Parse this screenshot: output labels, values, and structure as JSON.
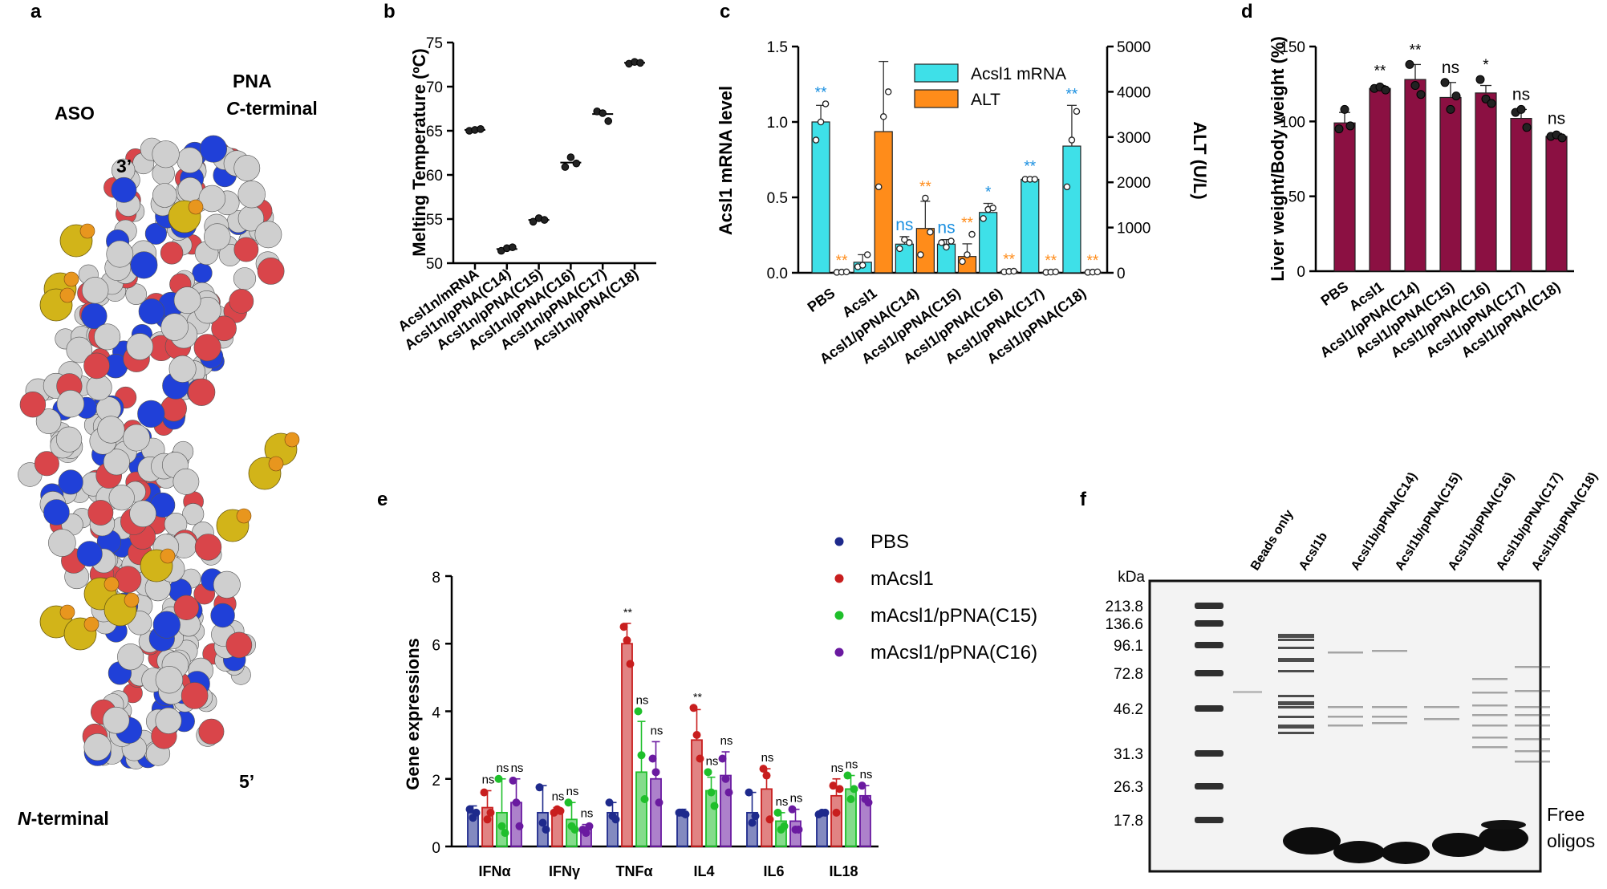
{
  "panel_labels": {
    "a": "a",
    "b": "b",
    "c": "c",
    "d": "d",
    "e": "e",
    "f": "f"
  },
  "panel_a": {
    "aso": "ASO",
    "pna": "PNA",
    "c_terminal": "C-terminal",
    "c_italic": "C",
    "c_rest": "-terminal",
    "n_italic": "N",
    "n_rest": "-terminal",
    "three_prime": "3’",
    "five_prime": "5’",
    "atom_colors": {
      "carbon": "#cfcfcf",
      "oxygen": "#d9454a",
      "nitrogen": "#2040d8",
      "phosphorus": "#e8961e",
      "sulfur": "#d2b419"
    }
  },
  "colors": {
    "cyan": "#3ee0e8",
    "orange": "#ff8c1a",
    "maroon": "#8b1042",
    "blue_sig": "#1a8fe0",
    "orange_sig": "#ff8c1a",
    "pbs": "#1e2a8c",
    "macsl1": "#c81e1e",
    "c15": "#1fbf2b",
    "c16": "#6a1aa0"
  },
  "chart_data": [
    {
      "id": "b",
      "type": "scatter",
      "ylabel": "Melting Temperature (ºC)",
      "ylim": [
        50,
        75
      ],
      "yticks": [
        50,
        55,
        60,
        65,
        70,
        75
      ],
      "categories": [
        "Acsl1n/mRNA",
        "Acsl1n/pPNA(C14)",
        "Acsl1n/pPNA(C15)",
        "Acsl1n/pPNA(C16)",
        "Acsl1n/pPNA(C17)",
        "Acsl1n/pPNA(C18)"
      ],
      "means": [
        65.1,
        51.6,
        54.9,
        61.4,
        66.9,
        72.7
      ],
      "points": [
        [
          65.0,
          65.1,
          65.2
        ],
        [
          51.4,
          51.7,
          51.8
        ],
        [
          54.7,
          55.1,
          54.9
        ],
        [
          60.9,
          62.0,
          61.3
        ],
        [
          67.2,
          67.0,
          66.1
        ],
        [
          72.6,
          72.8,
          72.7
        ]
      ]
    },
    {
      "id": "c",
      "type": "bar",
      "ylabel": "Acsl1 mRNA level",
      "y2label": "ALT (U/L)",
      "ylim": [
        0,
        1.5
      ],
      "yticks": [
        "0.0",
        "0.5",
        "1.0",
        "1.5"
      ],
      "y2lim": [
        0,
        5000
      ],
      "y2ticks": [
        "0",
        "1000",
        "2000",
        "3000",
        "4000",
        "5000"
      ],
      "categories": [
        "PBS",
        "Acsl1",
        "Acsl1/pPNA(C14)",
        "Acsl1/pPNA(C15)",
        "Acsl1/pPNA(C16)",
        "Acsl1/pPNA(C17)",
        "Acsl1/pPNA(C18)"
      ],
      "series": [
        {
          "name": "Acsl1 mRNA",
          "axis": "left",
          "values": [
            1.0,
            0.07,
            0.19,
            0.19,
            0.4,
            0.62,
            0.84
          ],
          "err": [
            0.11,
            0.05,
            0.05,
            0.03,
            0.06,
            0.01,
            0.27
          ],
          "points": [
            [
              0.88,
              1.0,
              1.12
            ],
            [
              0.04,
              0.05,
              0.12
            ],
            [
              0.16,
              0.22,
              0.2
            ],
            [
              0.2,
              0.17,
              0.21
            ],
            [
              0.36,
              0.42,
              0.43
            ],
            [
              0.62,
              0.62,
              0.62
            ],
            [
              0.57,
              0.88,
              1.07
            ]
          ],
          "sig": [
            "**",
            "",
            "ns",
            "ns",
            "*",
            "**",
            "**"
          ]
        },
        {
          "name": "ALT",
          "axis": "right",
          "values": [
            15,
            3120,
            980,
            360,
            30,
            15,
            15
          ],
          "err": [
            5,
            1550,
            600,
            280,
            10,
            5,
            5
          ],
          "points": [
            [
              10,
              15,
              20
            ],
            [
              1900,
              3450,
              4000
            ],
            [
              400,
              1650,
              900
            ],
            [
              250,
              400,
              850
            ],
            [
              20,
              30,
              35
            ],
            [
              10,
              15,
              20
            ],
            [
              10,
              15,
              20
            ]
          ],
          "sig": [
            "**",
            "",
            "**",
            "**",
            "**",
            "**",
            "**"
          ]
        }
      ]
    },
    {
      "id": "d",
      "type": "bar",
      "ylabel": "Liver weight/Body weight (%)",
      "ylim": [
        0,
        150
      ],
      "yticks": [
        0,
        50,
        100,
        150
      ],
      "categories": [
        "PBS",
        "Acsl1",
        "Acsl1/pPNA(C14)",
        "Acsl1/pPNA(C15)",
        "Acsl1/pPNA(C16)",
        "Acsl1/pPNA(C17)",
        "Acsl1/pPNA(C18)"
      ],
      "values": [
        99,
        122,
        128,
        116,
        119,
        102,
        90
      ],
      "err": [
        7,
        2,
        10,
        10,
        5,
        6,
        2
      ],
      "points": [
        [
          95,
          108,
          97
        ],
        [
          122,
          123,
          121
        ],
        [
          138,
          124,
          118
        ],
        [
          126,
          108,
          117
        ],
        [
          128,
          115,
          112
        ],
        [
          106,
          108,
          96
        ],
        [
          90,
          91,
          89
        ]
      ],
      "sig": [
        "",
        "**",
        "**",
        "ns",
        "*",
        "ns",
        "ns"
      ]
    },
    {
      "id": "e",
      "type": "bar",
      "ylabel": "Gene expressions",
      "ylim": [
        0,
        8
      ],
      "yticks": [
        0,
        2,
        4,
        6,
        8
      ],
      "categories": [
        "IFNα",
        "IFNγ",
        "TNFα",
        "IL4",
        "IL6",
        "IL18"
      ],
      "series": [
        {
          "name": "PBS",
          "values": [
            1.0,
            1.0,
            1.0,
            1.0,
            1.0,
            1.0
          ],
          "err": [
            0.2,
            0.8,
            0.3,
            0.1,
            0.6,
            0.05
          ],
          "points": [
            [
              1.1,
              0.85,
              1.0
            ],
            [
              1.75,
              0.7,
              0.5
            ],
            [
              1.3,
              0.9,
              0.8
            ],
            [
              1.0,
              1.0,
              0.95
            ],
            [
              1.6,
              0.7,
              0.9
            ],
            [
              0.95,
              1.0,
              1.0
            ]
          ]
        },
        {
          "name": "mAcsl1",
          "values": [
            1.15,
            1.05,
            6.0,
            3.15,
            1.7,
            1.5
          ],
          "err": [
            0.5,
            0.1,
            0.6,
            0.9,
            0.6,
            0.5
          ],
          "points": [
            [
              1.6,
              0.8,
              1.0
            ],
            [
              1.0,
              1.1,
              1.05
            ],
            [
              6.5,
              6.1,
              5.4
            ],
            [
              4.1,
              3.3,
              2.6
            ],
            [
              2.3,
              2.1,
              0.8
            ],
            [
              1.8,
              1.0,
              1.7
            ]
          ]
        },
        {
          "name": "mAcsl1/pPNA(C15)",
          "values": [
            1.0,
            0.8,
            2.2,
            1.65,
            0.75,
            1.7
          ],
          "err": [
            1.0,
            0.5,
            1.5,
            0.4,
            0.25,
            0.4
          ],
          "points": [
            [
              2.0,
              0.6,
              0.4
            ],
            [
              1.3,
              0.6,
              0.5
            ],
            [
              4.0,
              2.7,
              1.4
            ],
            [
              2.2,
              1.6,
              1.2
            ],
            [
              1.0,
              0.5,
              0.6
            ],
            [
              2.1,
              1.4,
              1.7
            ]
          ]
        },
        {
          "name": "mAcsl1/pPNA(C16)",
          "values": [
            1.3,
            0.5,
            2.0,
            2.1,
            0.75,
            1.5
          ],
          "err": [
            0.7,
            0.15,
            1.1,
            0.7,
            0.35,
            0.3
          ],
          "points": [
            [
              1.95,
              1.3,
              0.6
            ],
            [
              0.5,
              0.4,
              0.6
            ],
            [
              2.6,
              2.2,
              1.3
            ],
            [
              2.6,
              2.0,
              1.6
            ],
            [
              1.1,
              0.5,
              0.5
            ],
            [
              1.8,
              1.4,
              1.3
            ]
          ]
        }
      ],
      "sig": [
        [
          "",
          "ns",
          "ns",
          "ns"
        ],
        [
          "",
          "ns",
          "ns",
          "ns"
        ],
        [
          "",
          "**",
          "ns",
          "ns"
        ],
        [
          "",
          "**",
          "ns",
          "ns"
        ],
        [
          "",
          "ns",
          "ns",
          "ns"
        ],
        [
          "",
          "ns",
          "ns",
          "ns"
        ]
      ]
    }
  ],
  "panel_f": {
    "kda_label": "kDa",
    "markers": [
      "213.8",
      "136.6",
      "96.1",
      "72.8",
      "46.2",
      "31.3",
      "26.3",
      "17.8"
    ],
    "lanes": [
      "Beads only",
      "Acsl1b",
      "Acsl1b/pPNA(C14)",
      "Acsl1b/pPNA(C15)",
      "Acsl1b/pPNA(C16)",
      "Acsl1b/pPNA(C17)",
      "Acsl1b/pPNA(C18)"
    ],
    "free_oligos_line1": "Free",
    "free_oligos_line2": "oligos"
  }
}
